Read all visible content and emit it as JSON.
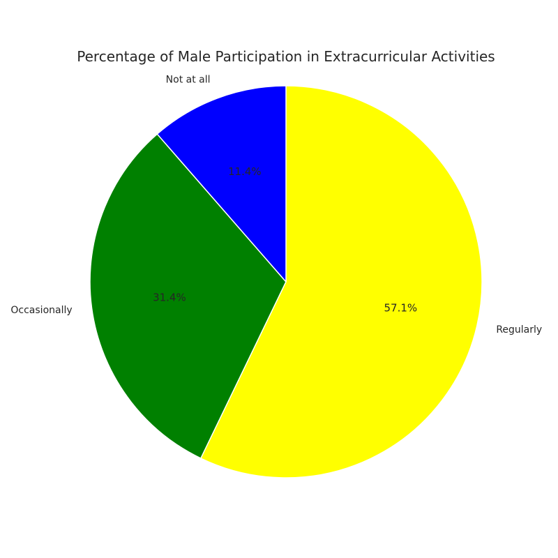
{
  "chart_data": {
    "type": "pie",
    "title": "Percentage of Male Participation in Extracurricular Activities",
    "categories": [
      "Regularly",
      "Occasionally",
      "Not at all"
    ],
    "values": [
      57.1,
      31.4,
      11.4
    ],
    "percent_labels": [
      "57.1%",
      "31.4%",
      "11.4%"
    ],
    "colors": [
      "#ffff00",
      "#008000",
      "#0000ff"
    ],
    "start_angle_deg": 90,
    "direction": "clockwise",
    "legend": "none"
  }
}
